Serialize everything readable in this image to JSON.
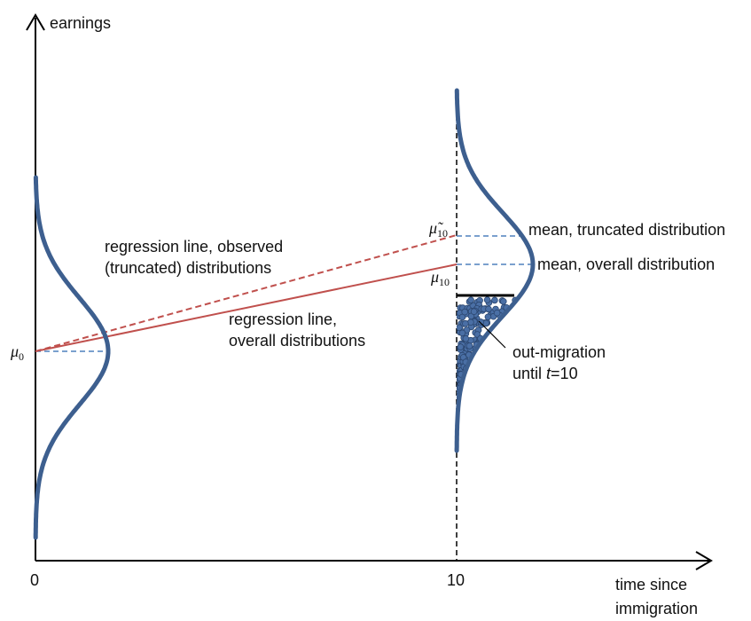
{
  "axes": {
    "y_label": "earnings",
    "x_label_line1": "time since",
    "x_label_line2": "immigration",
    "x_tick_0": "0",
    "x_tick_10": "10"
  },
  "symbols": {
    "mu_0_base": "μ",
    "mu_0_sub": "0",
    "mu_10_base": "μ",
    "mu_10_sub": "10",
    "mu_tilde_10_base": "μ̃",
    "mu_tilde_10_sub": "10"
  },
  "annotations": {
    "regression_observed_line1": "regression line, observed",
    "regression_observed_line2": "(truncated) distributions",
    "regression_overall_line1": "regression line,",
    "regression_overall_line2": "overall distributions",
    "mean_truncated": "mean, truncated distribution",
    "mean_overall": "mean, overall distribution",
    "outmigration_line1": "out-migration",
    "outmigration_line2_pre": "until ",
    "outmigration_line2_var": "t",
    "outmigration_line2_post": "=10"
  },
  "colors": {
    "curve": "#3d5f8f",
    "regression": "#c0504d",
    "mean_dash": "#4f81bd",
    "dots": "#3d5f8f",
    "axis": "#000000"
  }
}
